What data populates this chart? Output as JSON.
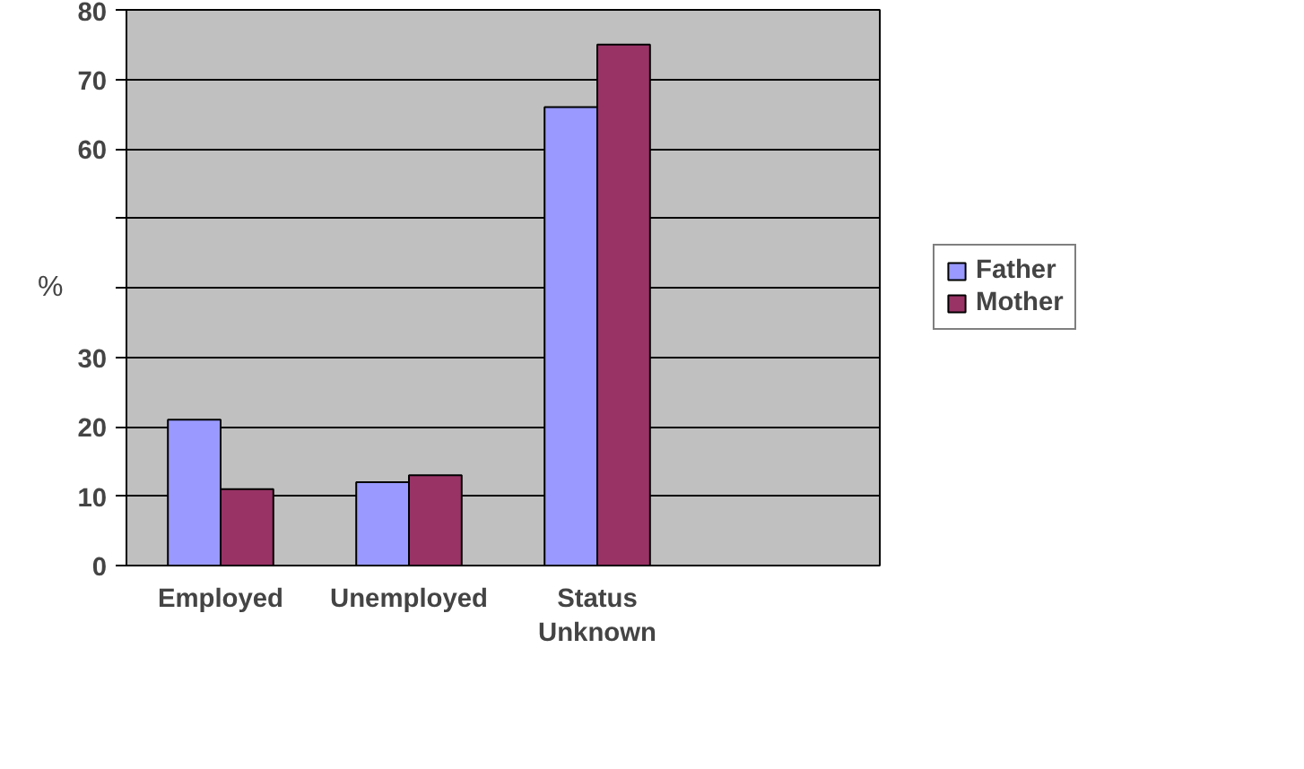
{
  "chart_data": {
    "type": "bar",
    "ylabel": "%",
    "categories": [
      "Employed",
      "Unemployed",
      "Status Unknown",
      null
    ],
    "series": [
      {
        "name": "Father",
        "color": "#9999ff",
        "values": [
          21,
          12,
          66,
          null
        ]
      },
      {
        "name": "Mother",
        "color": "#993366",
        "values": [
          11,
          13,
          75,
          null
        ]
      }
    ],
    "ylim": [
      0,
      80
    ],
    "yticks": [
      0,
      10,
      20,
      30,
      {
        "value": 40,
        "label": null
      },
      {
        "value": 50,
        "label": null
      },
      60,
      70,
      80
    ],
    "grid": "y",
    "legend": "right"
  }
}
